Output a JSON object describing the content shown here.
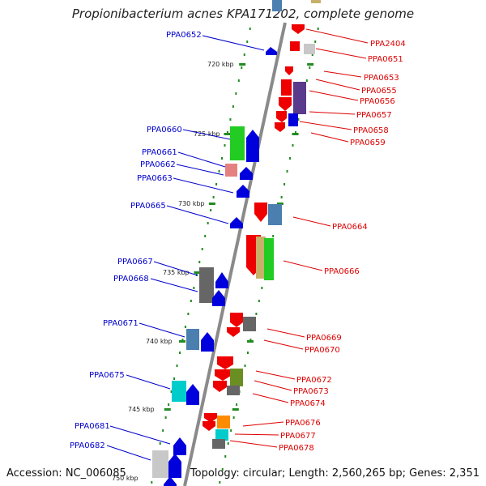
{
  "title": "Propionibacterium acnes KPA171202, complete genome",
  "accession": "Accession: NC_006085",
  "topology": "Topology: circular; Length: 2,560,265 bp; Genes: 2,351",
  "colors": {
    "left": "#0000cc",
    "right": "#dd0000"
  },
  "kbp_ticks": [
    "720 kbp",
    "725 kbp",
    "730 kbp",
    "735 kbp",
    "740 kbp",
    "745 kbp",
    "750 kbp"
  ],
  "left_genes": [
    "PPA0652",
    "PPA0660",
    "PPA0661",
    "PPA0662",
    "PPA0663",
    "PPA0665",
    "PPA0667",
    "PPA0668",
    "PPA0671",
    "PPA0675",
    "PPA0681",
    "PPA0682"
  ],
  "right_genes": [
    "PPA2404",
    "PPA0651",
    "PPA0653",
    "PPA0655",
    "PPA0656",
    "PPA0657",
    "PPA0658",
    "PPA0659",
    "PPA0664",
    "PPA0666",
    "PPA0669",
    "PPA0670",
    "PPA0672",
    "PPA0673",
    "PPA0674",
    "PPA0676",
    "PPA0677",
    "PPA0678"
  ]
}
